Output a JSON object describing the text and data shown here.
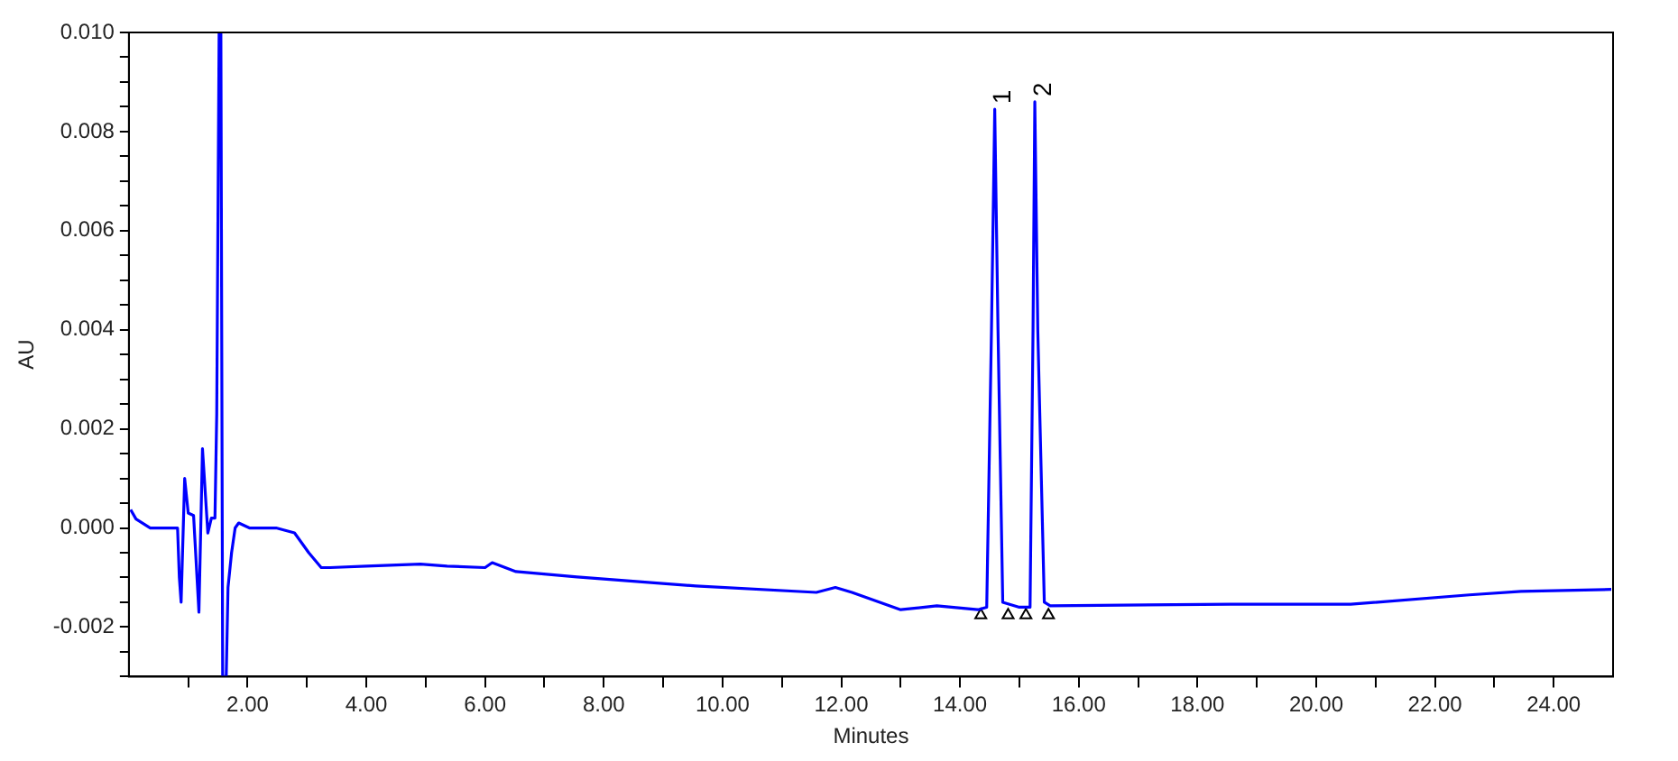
{
  "chart_data": {
    "type": "line",
    "xlabel": "Minutes",
    "ylabel": "AU",
    "xlim": [
      0,
      25
    ],
    "ylim": [
      -0.003,
      0.01
    ],
    "xticks": [
      {
        "value": 1,
        "label": null
      },
      {
        "value": 2,
        "label": "2.00"
      },
      {
        "value": 3,
        "label": null
      },
      {
        "value": 4,
        "label": "4.00"
      },
      {
        "value": 5,
        "label": null
      },
      {
        "value": 6,
        "label": "6.00"
      },
      {
        "value": 7,
        "label": null
      },
      {
        "value": 8,
        "label": "8.00"
      },
      {
        "value": 9,
        "label": null
      },
      {
        "value": 10,
        "label": "10.00"
      },
      {
        "value": 11,
        "label": null
      },
      {
        "value": 12,
        "label": "12.00"
      },
      {
        "value": 13,
        "label": null
      },
      {
        "value": 14,
        "label": "14.00"
      },
      {
        "value": 15,
        "label": null
      },
      {
        "value": 16,
        "label": "16.00"
      },
      {
        "value": 17,
        "label": null
      },
      {
        "value": 18,
        "label": "18.00"
      },
      {
        "value": 19,
        "label": null
      },
      {
        "value": 20,
        "label": "20.00"
      },
      {
        "value": 21,
        "label": null
      },
      {
        "value": 22,
        "label": "22.00"
      },
      {
        "value": 23,
        "label": null
      },
      {
        "value": 24,
        "label": "24.00"
      }
    ],
    "yticks": [
      {
        "value": -0.003,
        "label": null
      },
      {
        "value": -0.0025,
        "label": null
      },
      {
        "value": -0.002,
        "label": "-0.002"
      },
      {
        "value": -0.0015,
        "label": null
      },
      {
        "value": -0.001,
        "label": null
      },
      {
        "value": -0.0005,
        "label": null
      },
      {
        "value": 0,
        "label": "0.000"
      },
      {
        "value": 0.0005,
        "label": null
      },
      {
        "value": 0.001,
        "label": null
      },
      {
        "value": 0.0015,
        "label": null
      },
      {
        "value": 0.002,
        "label": "0.002"
      },
      {
        "value": 0.0025,
        "label": null
      },
      {
        "value": 0.003,
        "label": null
      },
      {
        "value": 0.0035,
        "label": null
      },
      {
        "value": 0.004,
        "label": "0.004"
      },
      {
        "value": 0.0045,
        "label": null
      },
      {
        "value": 0.005,
        "label": null
      },
      {
        "value": 0.0055,
        "label": null
      },
      {
        "value": 0.006,
        "label": "0.006"
      },
      {
        "value": 0.0065,
        "label": null
      },
      {
        "value": 0.007,
        "label": null
      },
      {
        "value": 0.0075,
        "label": null
      },
      {
        "value": 0.008,
        "label": "0.008"
      },
      {
        "value": 0.0085,
        "label": null
      },
      {
        "value": 0.009,
        "label": null
      },
      {
        "value": 0.0095,
        "label": null
      },
      {
        "value": 0.01,
        "label": "0.010"
      }
    ],
    "grid": false,
    "legend": false,
    "line_style": "solid",
    "series": [
      {
        "color": "#0000ff",
        "marker": "none",
        "x": [
          0.03,
          0.12,
          0.36,
          0.82,
          0.85,
          0.88,
          0.94,
          1.0,
          1.09,
          1.18,
          1.24,
          1.33,
          1.39,
          1.45,
          1.48,
          1.52,
          1.55,
          1.58,
          1.64,
          1.67,
          1.73,
          1.79,
          1.85,
          2.03,
          2.48,
          2.79,
          3.03,
          3.24,
          3.39,
          4.0,
          4.91,
          5.36,
          6.0,
          6.12,
          6.52,
          7.55,
          9.55,
          11.58,
          11.9,
          12.18,
          13.0,
          13.61,
          14.3,
          14.45,
          14.53,
          14.585,
          14.64,
          14.72,
          15.0,
          15.18,
          15.23,
          15.26,
          15.31,
          15.42,
          15.52,
          18.55,
          20.58,
          22.58,
          23.45,
          24.97
        ],
        "values": [
          0.00037,
          0.00018,
          0.0,
          0.0,
          -0.001,
          -0.0015,
          0.001,
          0.0003,
          0.00025,
          -0.0017,
          0.0016,
          -0.0001,
          0.0002,
          0.0002,
          0.0023,
          0.01,
          0.01,
          -0.003,
          -0.003,
          -0.0012,
          -0.0005,
          0.0,
          0.0001,
          0.0,
          0.0,
          -0.0001,
          -0.0005,
          -0.0008,
          -0.0008,
          -0.00077,
          -0.00073,
          -0.00077,
          -0.0008,
          -0.0007,
          -0.00088,
          -0.00099,
          -0.00117,
          -0.0013,
          -0.0012,
          -0.0013,
          -0.00165,
          -0.00157,
          -0.00165,
          -0.0016,
          0.004,
          0.00845,
          0.004,
          -0.0015,
          -0.0016,
          -0.0016,
          0.004,
          0.0086,
          0.004,
          -0.0015,
          -0.00157,
          -0.00154,
          -0.00154,
          -0.00135,
          -0.00128,
          -0.00124
        ]
      },
      {
        "type": "scatter",
        "color": "#000000",
        "marker": "triangle",
        "x": [
          14.35,
          14.81,
          15.11,
          15.49
        ],
        "values": [
          -0.00176,
          -0.00176,
          -0.00176,
          -0.00176
        ]
      }
    ],
    "annotations": [
      {
        "text": "1",
        "x": 14.585,
        "y": 0.00845
      },
      {
        "text": "2",
        "x": 15.26,
        "y": 0.0086
      }
    ]
  }
}
